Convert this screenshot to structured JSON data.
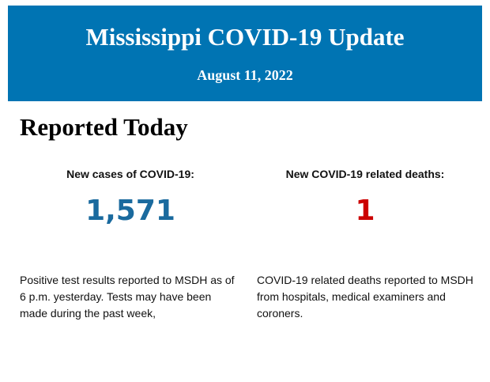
{
  "header": {
    "title": "Mississippi COVID-19 Update",
    "date": "August 11, 2022",
    "background_color": "#0074b3"
  },
  "section": {
    "heading": "Reported Today"
  },
  "cases": {
    "label": "New cases of COVID-19:",
    "value": "1,571",
    "color": "#1a6a9e",
    "description": "Positive test results reported to MSDH as of 6 p.m. yesterday. Tests may have been made during the past week,"
  },
  "deaths": {
    "label": "New COVID-19 related deaths:",
    "value": "1",
    "color": "#cc0000",
    "description": "COVID-19 related deaths reported to MSDH from hospitals, medical examiners and coroners."
  }
}
